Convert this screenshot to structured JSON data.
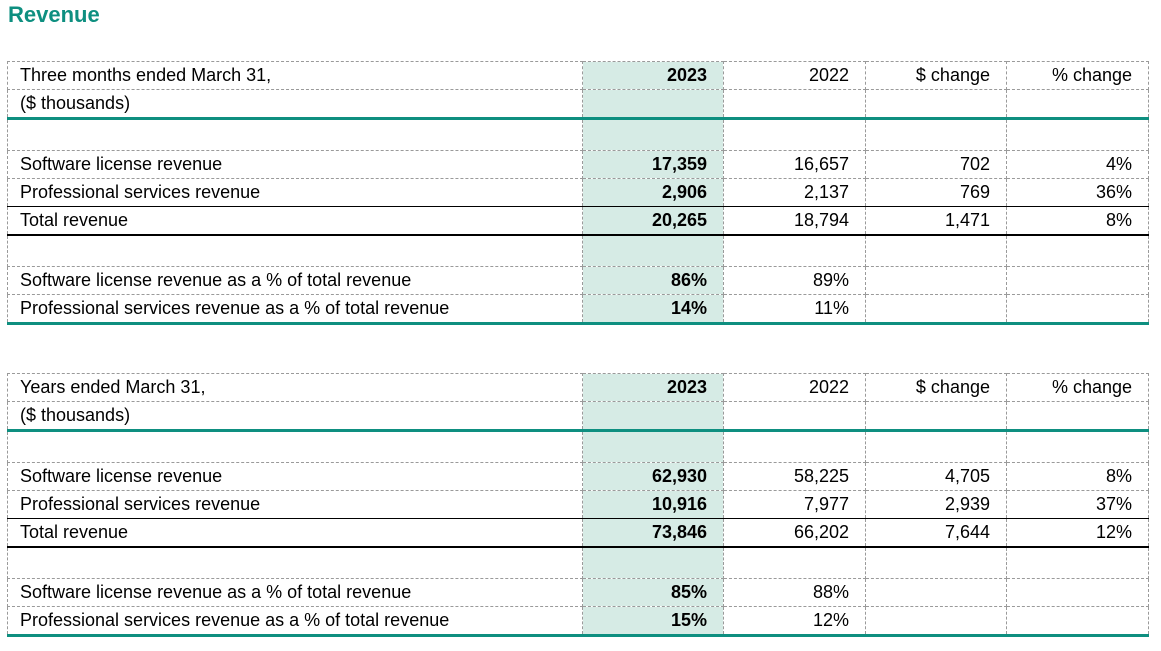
{
  "page": {
    "title": "Revenue",
    "accent_color": "#0e8f80",
    "highlight_color": "#d6ebe5"
  },
  "tables": [
    {
      "period_label": "Three months ended March 31,",
      "units_label": "($ thousands)",
      "columns": [
        "2023",
        "2022",
        "$ change",
        "% change"
      ],
      "rows": [
        {
          "label": "Software license revenue",
          "values": [
            "17,359",
            "16,657",
            "702",
            "4%"
          ]
        },
        {
          "label": "Professional services revenue",
          "values": [
            "2,906",
            "2,137",
            "769",
            "36%"
          ]
        },
        {
          "label": "Total revenue",
          "values": [
            "20,265",
            "18,794",
            "1,471",
            "8%"
          ]
        }
      ],
      "pct_rows": [
        {
          "label": "Software license revenue as a % of total revenue",
          "values": [
            "86%",
            "89%",
            "",
            ""
          ]
        },
        {
          "label": "Professional services revenue as a % of total revenue",
          "values": [
            "14%",
            "11%",
            "",
            ""
          ]
        }
      ]
    },
    {
      "period_label": "Years ended March 31,",
      "units_label": "($ thousands)",
      "columns": [
        "2023",
        "2022",
        "$ change",
        "% change"
      ],
      "rows": [
        {
          "label": "Software license revenue",
          "values": [
            "62,930",
            "58,225",
            "4,705",
            "8%"
          ]
        },
        {
          "label": "Professional services revenue",
          "values": [
            "10,916",
            "7,977",
            "2,939",
            "37%"
          ]
        },
        {
          "label": "Total revenue",
          "values": [
            "73,846",
            "66,202",
            "7,644",
            "12%"
          ]
        }
      ],
      "pct_rows": [
        {
          "label": "Software license revenue as a % of total revenue",
          "values": [
            "85%",
            "88%",
            "",
            ""
          ]
        },
        {
          "label": "Professional services revenue as a % of total revenue",
          "values": [
            "15%",
            "12%",
            "",
            ""
          ]
        }
      ]
    }
  ]
}
